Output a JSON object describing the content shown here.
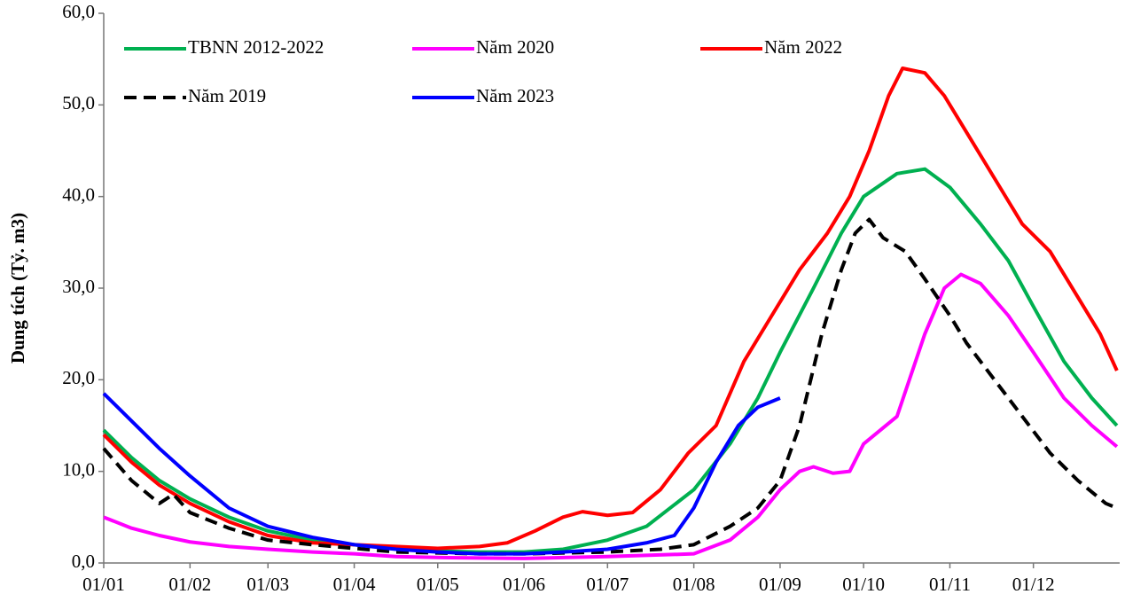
{
  "chart_data": {
    "type": "line",
    "ylabel": "Dung tích (Tỷ. m3)",
    "xlim": [
      0,
      365
    ],
    "xticks": [
      {
        "value": 0,
        "label": "01/01"
      },
      {
        "value": 31,
        "label": "01/02"
      },
      {
        "value": 59,
        "label": "01/03"
      },
      {
        "value": 90,
        "label": "01/04"
      },
      {
        "value": 120,
        "label": "01/05"
      },
      {
        "value": 151,
        "label": "01/06"
      },
      {
        "value": 181,
        "label": "01/07"
      },
      {
        "value": 212,
        "label": "01/08"
      },
      {
        "value": 243,
        "label": "01/09"
      },
      {
        "value": 273,
        "label": "01/10"
      },
      {
        "value": 304,
        "label": "01/11"
      },
      {
        "value": 334,
        "label": "01/12"
      }
    ],
    "ylim": [
      0,
      60
    ],
    "yticks": [
      {
        "value": 0,
        "label": "0,0"
      },
      {
        "value": 10,
        "label": "10,0"
      },
      {
        "value": 20,
        "label": "20,0"
      },
      {
        "value": 30,
        "label": "30,0"
      },
      {
        "value": 40,
        "label": "40,0"
      },
      {
        "value": 50,
        "label": "50,0"
      },
      {
        "value": 60,
        "label": "60,0"
      }
    ],
    "legend": "upper left",
    "series": [
      {
        "name": "TBNN 2012-2022",
        "color": "#00b050",
        "dash": false,
        "x": [
          0,
          10,
          20,
          31,
          45,
          59,
          75,
          90,
          105,
          120,
          135,
          151,
          165,
          181,
          195,
          212,
          225,
          235,
          243,
          255,
          265,
          273,
          285,
          295,
          304,
          315,
          325,
          334,
          345,
          355,
          364
        ],
        "values": [
          14.5,
          11.5,
          9,
          7,
          5,
          3.5,
          2.5,
          2,
          1.6,
          1.3,
          1.2,
          1.2,
          1.5,
          2.5,
          4,
          8,
          13,
          18,
          23,
          30,
          36,
          40,
          42.5,
          43,
          41,
          37,
          33,
          28,
          22,
          18,
          15
        ]
      },
      {
        "name": "Năm 2020",
        "color": "#ff00ff",
        "dash": false,
        "x": [
          0,
          10,
          20,
          31,
          45,
          59,
          75,
          90,
          105,
          120,
          151,
          181,
          212,
          225,
          235,
          243,
          250,
          255,
          262,
          268,
          273,
          285,
          295,
          302,
          308,
          315,
          325,
          334,
          345,
          355,
          364
        ],
        "values": [
          5,
          3.8,
          3,
          2.3,
          1.8,
          1.5,
          1.2,
          1,
          0.7,
          0.6,
          0.5,
          0.7,
          1,
          2.5,
          5,
          8,
          10,
          10.5,
          9.8,
          10,
          13,
          16,
          25,
          30,
          31.5,
          30.5,
          27,
          23,
          18,
          15,
          12.7
        ]
      },
      {
        "name": "Năm 2022",
        "color": "#ff0000",
        "dash": false,
        "x": [
          0,
          10,
          20,
          31,
          45,
          59,
          75,
          90,
          105,
          120,
          135,
          145,
          155,
          165,
          172,
          181,
          190,
          200,
          210,
          220,
          230,
          240,
          250,
          260,
          268,
          275,
          282,
          287,
          295,
          302,
          310,
          320,
          330,
          340,
          350,
          358,
          364
        ],
        "values": [
          14,
          11,
          8.5,
          6.5,
          4.5,
          3,
          2.2,
          2,
          1.8,
          1.6,
          1.8,
          2.2,
          3.5,
          5,
          5.6,
          5.2,
          5.5,
          8,
          12,
          15,
          22,
          27,
          32,
          36,
          40,
          45,
          51,
          54,
          53.5,
          51,
          47,
          42,
          37,
          34,
          29,
          25,
          21
        ]
      },
      {
        "name": "Năm 2019",
        "color": "#000000",
        "dash": true,
        "x": [
          0,
          10,
          20,
          25,
          31,
          45,
          59,
          75,
          90,
          105,
          120,
          135,
          151,
          181,
          200,
          212,
          225,
          235,
          243,
          250,
          258,
          265,
          270,
          275,
          280,
          288,
          295,
          304,
          310,
          320,
          330,
          340,
          350,
          360,
          364
        ],
        "values": [
          12.5,
          9,
          6.5,
          7.5,
          5.5,
          3.8,
          2.5,
          2,
          1.6,
          1.2,
          1.1,
          1,
          1,
          1.2,
          1.5,
          2,
          4,
          6,
          9,
          15,
          25,
          32,
          36,
          37.5,
          35.5,
          34,
          31,
          27,
          24,
          20,
          16,
          12,
          9,
          6.5,
          6
        ]
      },
      {
        "name": "Năm 2023",
        "color": "#0000ff",
        "dash": false,
        "x": [
          0,
          10,
          20,
          31,
          45,
          59,
          75,
          90,
          105,
          120,
          135,
          151,
          165,
          181,
          195,
          205,
          212,
          220,
          228,
          235,
          243
        ],
        "values": [
          18.5,
          15.5,
          12.5,
          9.5,
          6,
          4,
          2.8,
          2,
          1.5,
          1.2,
          1,
          1,
          1.2,
          1.5,
          2.2,
          3,
          6,
          11,
          15,
          17,
          18
        ]
      }
    ]
  }
}
